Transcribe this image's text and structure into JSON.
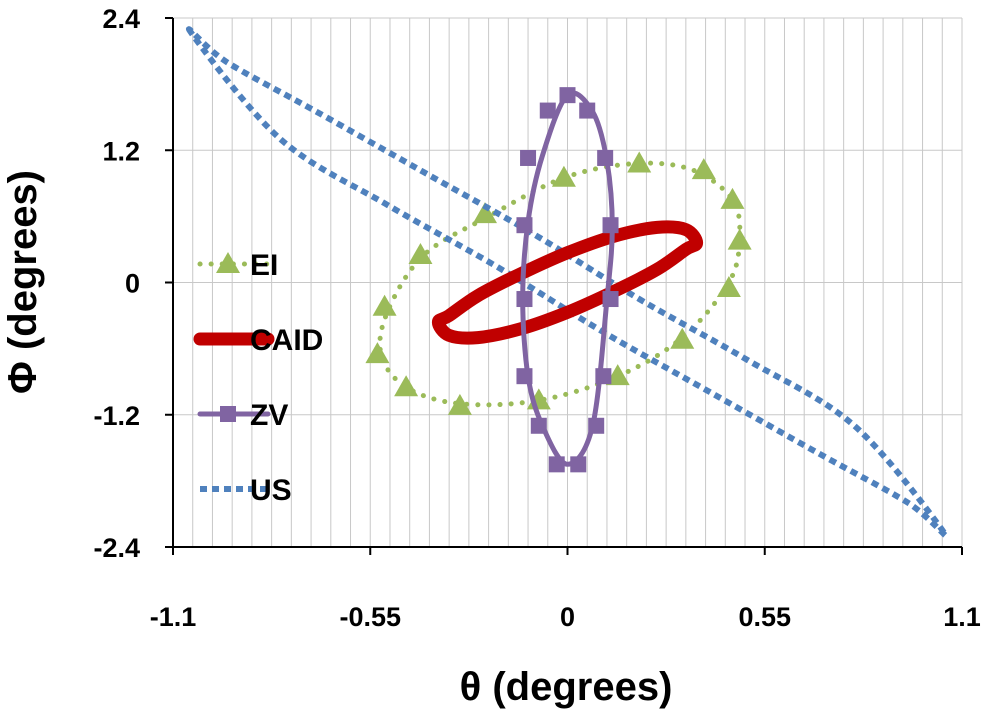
{
  "chart_data": {
    "type": "scatter",
    "title": "",
    "xlabel": "θ (degrees)",
    "ylabel": "Φ (degrees)",
    "xlim": [
      -1.1,
      1.1
    ],
    "ylim": [
      -2.4,
      2.4
    ],
    "x_ticks": [
      "-1.1",
      "-0.55",
      "0",
      "0.55",
      "1.1"
    ],
    "y_ticks": [
      "2.4",
      "1.2",
      "0",
      "-1.2",
      "-2.4"
    ],
    "grid": true,
    "legend_position": "left",
    "series": [
      {
        "name": "EI",
        "color": "#9bbb59",
        "line_style": "dotted",
        "marker": "triangle",
        "x": [
          0.48,
          0.46,
          0.35,
          0.19,
          -0.01,
          -0.22,
          -0.4,
          -0.5,
          -0.52,
          -0.45,
          -0.3,
          -0.08,
          0.14,
          0.32,
          0.45,
          0.48
        ],
        "y": [
          0.4,
          0.75,
          1.02,
          1.08,
          0.95,
          0.6,
          0.25,
          -0.25,
          -0.65,
          -0.95,
          -1.1,
          -1.07,
          -0.85,
          -0.5,
          0.0,
          0.4
        ],
        "marker_x": [
          0.48,
          0.46,
          0.38,
          0.2,
          -0.01,
          -0.23,
          -0.41,
          -0.51,
          -0.53,
          -0.45,
          -0.3,
          -0.08,
          0.14,
          0.32,
          0.45
        ],
        "marker_y": [
          0.38,
          0.75,
          1.02,
          1.08,
          0.95,
          0.62,
          0.25,
          -0.22,
          -0.65,
          -0.95,
          -1.12,
          -1.07,
          -0.85,
          -0.52,
          -0.05
        ]
      },
      {
        "name": "CAID",
        "color": "#c00000",
        "line_style": "solid",
        "marker": "none",
        "ellipse": {
          "cx": 0.0,
          "cy": 0.0,
          "rx": 0.36,
          "ry": 0.0,
          "angle_note": "tilted"
        },
        "x": [
          0.36,
          0.33,
          0.25,
          0.13,
          0.0,
          -0.13,
          -0.25,
          -0.33,
          -0.36,
          -0.33,
          -0.25,
          -0.13,
          0.0,
          0.13,
          0.25,
          0.33,
          0.36
        ],
        "y": [
          0.36,
          0.48,
          0.5,
          0.42,
          0.27,
          0.08,
          -0.12,
          -0.3,
          -0.36,
          -0.48,
          -0.5,
          -0.42,
          -0.27,
          -0.08,
          0.12,
          0.3,
          0.36
        ]
      },
      {
        "name": "ZV",
        "color": "#8064a2",
        "line_style": "solid",
        "marker": "square",
        "x": [
          0.0,
          0.07,
          0.11,
          0.125,
          0.11,
          0.07,
          0.0,
          -0.07,
          -0.11,
          -0.125,
          -0.11,
          -0.07,
          0.0
        ],
        "y": [
          1.7,
          1.55,
          1.1,
          0.5,
          -0.15,
          -1.3,
          -1.65,
          -1.3,
          -0.85,
          -0.15,
          0.55,
          1.15,
          1.7
        ],
        "marker_x": [
          0.0,
          0.055,
          0.105,
          0.12,
          0.12,
          0.1,
          0.08,
          0.03,
          -0.03,
          -0.08,
          -0.12,
          -0.12,
          -0.12,
          -0.11,
          -0.055
        ],
        "marker_y": [
          1.7,
          1.56,
          1.13,
          0.52,
          -0.15,
          -0.85,
          -1.3,
          -1.65,
          -1.65,
          -1.3,
          -0.85,
          -0.15,
          0.52,
          1.13,
          1.56
        ]
      },
      {
        "name": "US",
        "color": "#4f81bd",
        "line_style": "dotted",
        "marker": "none",
        "x": [
          -1.05,
          -0.95,
          -0.7,
          -0.4,
          -0.1,
          0.2,
          0.5,
          0.8,
          1.05,
          0.95,
          0.7,
          0.4,
          0.1,
          -0.2,
          -0.5,
          -0.8,
          -1.05
        ],
        "y": [
          2.27,
          2.0,
          1.55,
          1.0,
          0.45,
          -0.15,
          -0.7,
          -1.3,
          -2.27,
          -2.0,
          -1.55,
          -1.0,
          -0.45,
          0.15,
          0.7,
          1.3,
          2.27
        ]
      }
    ]
  }
}
